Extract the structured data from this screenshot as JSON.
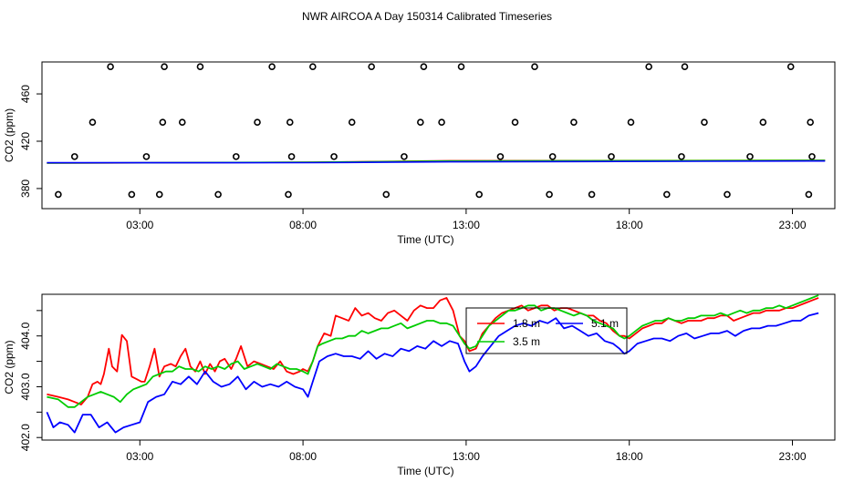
{
  "title": "NWR AIRCOA A  Day 150314  Calibrated Timeseries",
  "chart_data": [
    {
      "type": "scatter",
      "xlabel": "Time (UTC)",
      "ylabel": "CO2 (ppm)",
      "xlim": [
        0,
        24.3
      ],
      "ylim": [
        363,
        487
      ],
      "xticks": [
        3,
        8,
        13,
        18,
        23
      ],
      "xtick_labels": [
        "03:00",
        "08:00",
        "13:00",
        "18:00",
        "23:00"
      ],
      "yticks": [
        380,
        420,
        460
      ],
      "ytick_labels": [
        "380",
        "420",
        "460"
      ],
      "reference_points": {
        "x": [
          0.5,
          1.0,
          1.55,
          2.1,
          2.75,
          3.2,
          3.6,
          3.7,
          3.75,
          4.3,
          4.85,
          5.4,
          5.95,
          6.6,
          7.05,
          7.55,
          7.6,
          7.65,
          8.3,
          8.95,
          9.5,
          10.1,
          10.55,
          11.1,
          11.6,
          11.7,
          12.25,
          12.85,
          13.4,
          14.05,
          14.5,
          15.1,
          15.55,
          15.65,
          16.3,
          16.85,
          17.45,
          18.05,
          18.6,
          19.15,
          19.6,
          19.7,
          20.3,
          21.0,
          21.7,
          22.1,
          22.95,
          23.5,
          23.55,
          23.6
        ],
        "y": [
          375,
          407,
          436,
          483,
          375,
          407,
          375,
          436,
          483,
          436,
          483,
          375,
          407,
          436,
          483,
          375,
          436,
          407,
          483,
          407,
          436,
          483,
          375,
          407,
          436,
          483,
          436,
          483,
          375,
          407,
          436,
          483,
          375,
          407,
          436,
          375,
          407,
          436,
          483,
          375,
          407,
          483,
          436,
          375,
          407,
          436,
          483,
          375,
          436,
          407
        ]
      },
      "series": [
        {
          "name": "1.8 m",
          "color": "#ff0000",
          "x": [
            0.15,
            8.3,
            12.5,
            24.0
          ],
          "values": [
            401.5,
            402.2,
            403.5,
            403.8
          ]
        },
        {
          "name": "3.5 m",
          "color": "#00cc00",
          "x": [
            0.15,
            8.3,
            12.5,
            24.0
          ],
          "values": [
            401.6,
            402.2,
            403.3,
            403.8
          ]
        },
        {
          "name": "5.1 m",
          "color": "#0000ff",
          "x": [
            0.15,
            8.3,
            12.5,
            24.0
          ],
          "values": [
            401.8,
            401.9,
            402.6,
            403.3
          ]
        }
      ]
    },
    {
      "type": "line",
      "xlabel": "Time (UTC)",
      "ylabel": "CO2 (ppm)",
      "xlim": [
        0,
        24.3
      ],
      "ylim": [
        401.95,
        404.82
      ],
      "xticks": [
        3,
        8,
        13,
        18,
        23
      ],
      "xtick_labels": [
        "03:00",
        "08:00",
        "13:00",
        "18:00",
        "23:00"
      ],
      "yticks": [
        402.0,
        403.0,
        404.0
      ],
      "ytick_labels": [
        "402.0",
        "403.0",
        "404.0"
      ],
      "ytick_minor": [
        402.5,
        403.5,
        404.5
      ],
      "legend": {
        "position": "inside-center-top",
        "entries": [
          "1.8 m",
          "3.5 m",
          "5.1 m"
        ]
      },
      "series": [
        {
          "name": "1.8 m",
          "color": "#ff0000",
          "x": [
            0.15,
            0.5,
            0.8,
            1.0,
            1.2,
            1.4,
            1.55,
            1.7,
            1.8,
            1.9,
            2.05,
            2.15,
            2.3,
            2.45,
            2.6,
            2.75,
            2.9,
            3.05,
            3.15,
            3.3,
            3.45,
            3.6,
            3.75,
            3.95,
            4.1,
            4.25,
            4.4,
            4.55,
            4.7,
            4.85,
            5.0,
            5.15,
            5.3,
            5.45,
            5.6,
            5.8,
            5.95,
            6.1,
            6.3,
            6.5,
            6.7,
            6.9,
            7.1,
            7.3,
            7.5,
            7.7,
            7.9,
            8.0,
            8.15,
            8.3,
            8.45,
            8.65,
            8.85,
            9.0,
            9.2,
            9.4,
            9.6,
            9.8,
            10.0,
            10.2,
            10.4,
            10.6,
            10.8,
            11.0,
            11.2,
            11.4,
            11.6,
            11.8,
            12.0,
            12.2,
            12.4,
            12.6,
            12.8,
            12.95,
            13.1,
            13.3,
            13.5,
            13.7,
            13.9,
            14.1,
            14.3,
            14.5,
            14.7,
            14.9,
            15.1,
            15.3,
            15.5,
            15.7,
            15.9,
            16.1,
            16.3,
            16.5,
            16.7,
            16.9,
            17.1,
            17.3,
            17.5,
            17.7,
            17.85,
            18.0,
            18.2,
            18.4,
            18.6,
            18.8,
            19.0,
            19.2,
            19.4,
            19.6,
            19.8,
            20.0,
            20.2,
            20.4,
            20.6,
            20.8,
            21.0,
            21.2,
            21.4,
            21.6,
            21.8,
            22.0,
            22.2,
            22.4,
            22.6,
            22.8,
            23.0,
            23.2,
            23.4,
            23.6,
            23.8
          ],
          "values": [
            402.85,
            402.8,
            402.75,
            402.7,
            402.65,
            402.8,
            403.05,
            403.1,
            403.05,
            403.25,
            403.75,
            403.4,
            403.3,
            404.02,
            403.9,
            403.2,
            403.15,
            403.1,
            403.1,
            403.4,
            403.75,
            403.2,
            403.4,
            403.45,
            403.4,
            403.6,
            403.75,
            403.4,
            403.3,
            403.5,
            403.25,
            403.45,
            403.3,
            403.5,
            403.55,
            403.35,
            403.55,
            403.8,
            403.4,
            403.5,
            403.45,
            403.4,
            403.35,
            403.5,
            403.3,
            403.25,
            403.3,
            403.35,
            403.3,
            403.5,
            403.8,
            404.05,
            404.0,
            404.4,
            404.35,
            404.3,
            404.55,
            404.4,
            404.45,
            404.35,
            404.3,
            404.45,
            404.5,
            404.4,
            404.3,
            404.5,
            404.6,
            404.55,
            404.55,
            404.7,
            404.75,
            404.5,
            404.0,
            403.9,
            403.7,
            403.75,
            404.05,
            404.2,
            404.35,
            404.45,
            404.5,
            404.55,
            404.6,
            404.5,
            404.55,
            404.6,
            404.6,
            404.5,
            404.55,
            404.55,
            404.5,
            404.45,
            404.4,
            404.4,
            404.3,
            404.25,
            404.1,
            404.0,
            404.0,
            403.95,
            404.05,
            404.15,
            404.2,
            404.25,
            404.25,
            404.35,
            404.3,
            404.25,
            404.3,
            404.3,
            404.3,
            404.35,
            404.35,
            404.4,
            404.4,
            404.3,
            404.35,
            404.4,
            404.45,
            404.45,
            404.5,
            404.5,
            404.5,
            404.55,
            404.55,
            404.6,
            404.65,
            404.7,
            404.75
          ]
        },
        {
          "name": "3.5 m",
          "color": "#00cc00",
          "x": [
            0.15,
            0.5,
            0.8,
            1.0,
            1.2,
            1.4,
            1.6,
            1.8,
            2.0,
            2.2,
            2.4,
            2.6,
            2.8,
            3.0,
            3.2,
            3.4,
            3.6,
            3.8,
            4.0,
            4.2,
            4.4,
            4.6,
            4.8,
            5.0,
            5.2,
            5.4,
            5.6,
            5.8,
            6.0,
            6.2,
            6.4,
            6.6,
            6.8,
            7.0,
            7.2,
            7.4,
            7.6,
            7.8,
            8.0,
            8.15,
            8.3,
            8.45,
            8.6,
            8.8,
            9.0,
            9.2,
            9.4,
            9.6,
            9.8,
            10.0,
            10.2,
            10.4,
            10.6,
            10.8,
            11.0,
            11.2,
            11.4,
            11.6,
            11.8,
            12.0,
            12.2,
            12.4,
            12.6,
            12.8,
            12.95,
            13.1,
            13.3,
            13.5,
            13.7,
            13.9,
            14.1,
            14.3,
            14.5,
            14.7,
            14.9,
            15.1,
            15.3,
            15.5,
            15.7,
            15.9,
            16.1,
            16.3,
            16.5,
            16.7,
            16.9,
            17.1,
            17.3,
            17.5,
            17.7,
            17.85,
            18.0,
            18.2,
            18.4,
            18.6,
            18.8,
            19.0,
            19.2,
            19.4,
            19.6,
            19.8,
            20.0,
            20.2,
            20.4,
            20.6,
            20.8,
            21.0,
            21.2,
            21.4,
            21.6,
            21.8,
            22.0,
            22.2,
            22.4,
            22.6,
            22.8,
            23.0,
            23.2,
            23.4,
            23.6,
            23.8
          ],
          "values": [
            402.8,
            402.75,
            402.6,
            402.6,
            402.7,
            402.8,
            402.85,
            402.9,
            402.85,
            402.8,
            402.7,
            402.85,
            402.95,
            403.0,
            403.05,
            403.2,
            403.25,
            403.3,
            403.3,
            403.4,
            403.35,
            403.35,
            403.3,
            403.4,
            403.35,
            403.4,
            403.35,
            403.45,
            403.5,
            403.35,
            403.4,
            403.45,
            403.4,
            403.35,
            403.45,
            403.4,
            403.35,
            403.35,
            403.3,
            403.25,
            403.5,
            403.8,
            403.85,
            403.9,
            403.95,
            403.95,
            404.0,
            404.0,
            404.1,
            404.05,
            404.1,
            404.15,
            404.15,
            404.2,
            404.25,
            404.15,
            404.2,
            404.25,
            404.3,
            404.3,
            404.25,
            404.25,
            404.2,
            404.0,
            403.85,
            403.75,
            403.8,
            404.0,
            404.2,
            404.3,
            404.4,
            404.5,
            404.5,
            404.55,
            404.6,
            404.6,
            404.5,
            404.55,
            404.55,
            404.5,
            404.45,
            404.4,
            404.45,
            404.4,
            404.3,
            404.25,
            404.2,
            404.15,
            404.0,
            403.95,
            404.0,
            404.1,
            404.2,
            404.25,
            404.3,
            404.3,
            404.35,
            404.3,
            404.3,
            404.35,
            404.35,
            404.4,
            404.4,
            404.4,
            404.45,
            404.4,
            404.45,
            404.5,
            404.45,
            404.5,
            404.5,
            404.55,
            404.55,
            404.6,
            404.55,
            404.6,
            404.65,
            404.7,
            404.75,
            404.8
          ]
        },
        {
          "name": "5.1 m",
          "color": "#0000ff",
          "x": [
            0.15,
            0.35,
            0.55,
            0.8,
            1.0,
            1.25,
            1.5,
            1.75,
            2.0,
            2.25,
            2.5,
            2.75,
            3.0,
            3.25,
            3.5,
            3.75,
            4.0,
            4.25,
            4.5,
            4.75,
            5.0,
            5.25,
            5.5,
            5.75,
            6.0,
            6.25,
            6.5,
            6.75,
            7.0,
            7.25,
            7.5,
            7.75,
            8.0,
            8.15,
            8.3,
            8.5,
            8.75,
            9.0,
            9.25,
            9.5,
            9.75,
            10.0,
            10.25,
            10.5,
            10.75,
            11.0,
            11.25,
            11.5,
            11.75,
            12.0,
            12.25,
            12.5,
            12.75,
            12.95,
            13.1,
            13.3,
            13.5,
            13.75,
            14.0,
            14.25,
            14.5,
            14.75,
            15.0,
            15.25,
            15.5,
            15.75,
            16.0,
            16.25,
            16.5,
            16.75,
            17.0,
            17.25,
            17.5,
            17.7,
            17.85,
            18.0,
            18.25,
            18.5,
            18.75,
            19.0,
            19.25,
            19.5,
            19.75,
            20.0,
            20.25,
            20.5,
            20.75,
            21.0,
            21.25,
            21.5,
            21.75,
            22.0,
            22.25,
            22.5,
            22.75,
            23.0,
            23.25,
            23.5,
            23.8
          ],
          "values": [
            402.5,
            402.2,
            402.3,
            402.25,
            402.1,
            402.45,
            402.45,
            402.2,
            402.3,
            402.1,
            402.2,
            402.25,
            402.3,
            402.7,
            402.8,
            402.85,
            403.1,
            403.05,
            403.2,
            403.05,
            403.3,
            403.1,
            403.0,
            403.05,
            403.2,
            402.95,
            403.1,
            403.0,
            403.05,
            403.0,
            403.1,
            403.0,
            402.95,
            402.8,
            403.1,
            403.5,
            403.6,
            403.65,
            403.6,
            403.6,
            403.55,
            403.7,
            403.55,
            403.65,
            403.6,
            403.75,
            403.7,
            403.8,
            403.75,
            403.9,
            403.8,
            403.9,
            403.85,
            403.5,
            403.3,
            403.4,
            403.6,
            403.8,
            404.0,
            404.1,
            404.2,
            404.25,
            404.2,
            404.3,
            404.25,
            404.35,
            404.15,
            404.2,
            404.1,
            404.0,
            404.05,
            403.9,
            403.85,
            403.75,
            403.65,
            403.7,
            403.85,
            403.9,
            403.95,
            403.95,
            403.9,
            404.0,
            404.05,
            403.95,
            404.0,
            404.05,
            404.05,
            404.1,
            404.0,
            404.1,
            404.15,
            404.15,
            404.2,
            404.2,
            404.25,
            404.3,
            404.3,
            404.4,
            404.45
          ]
        }
      ]
    }
  ]
}
